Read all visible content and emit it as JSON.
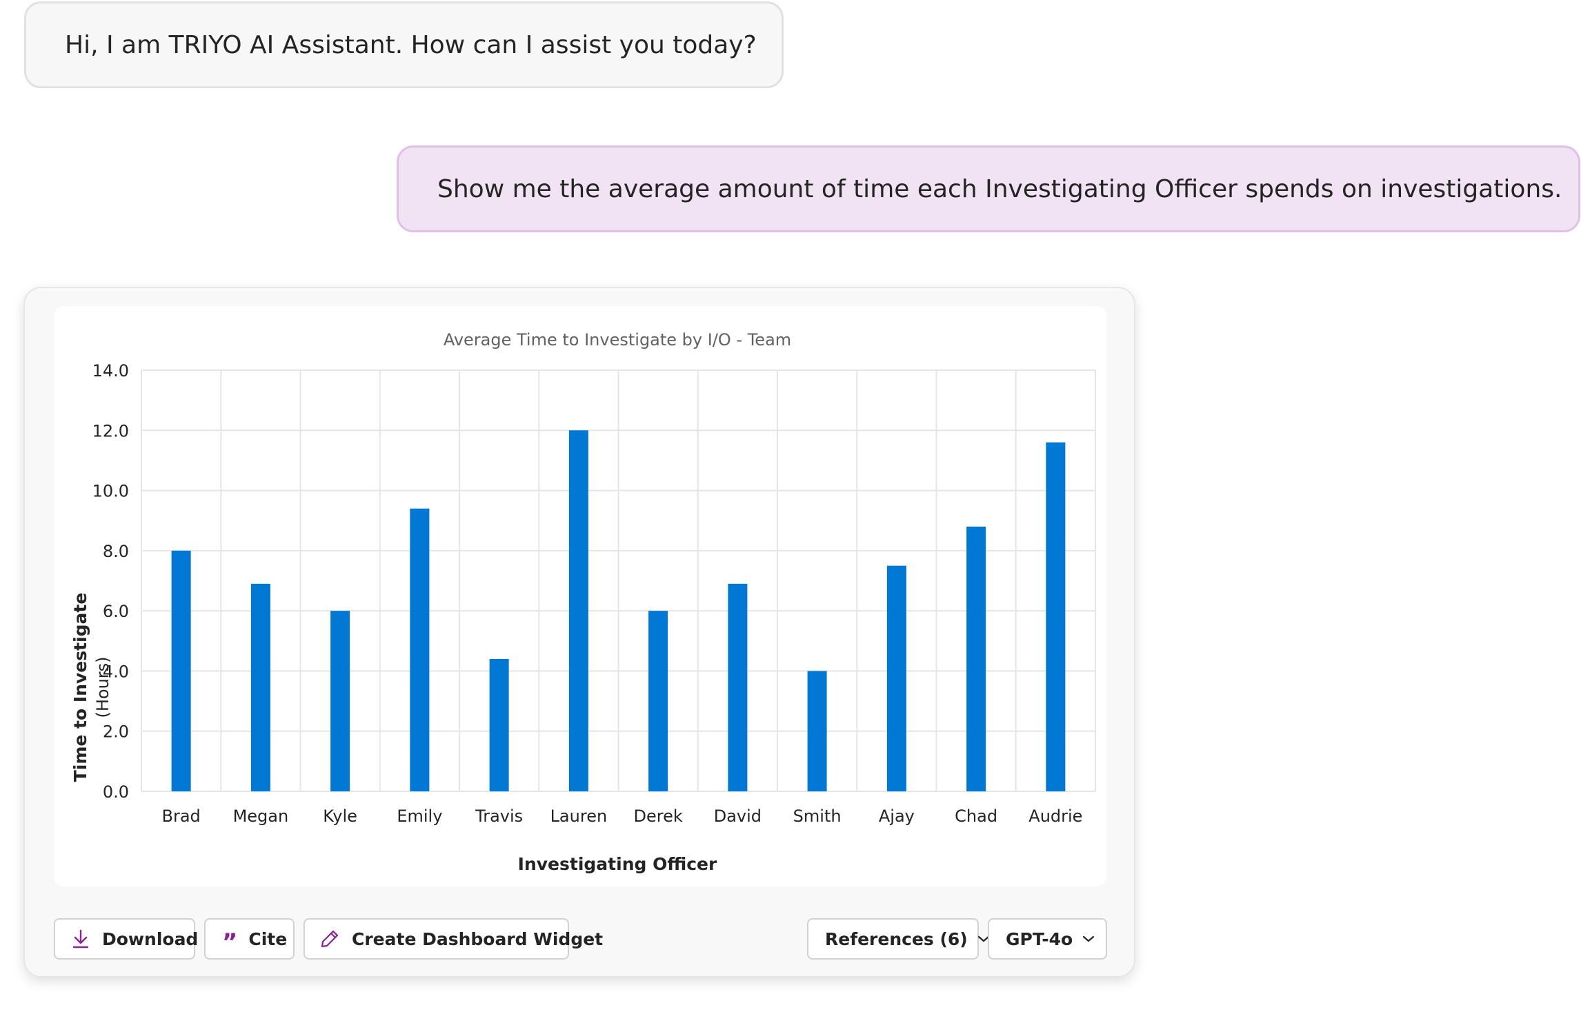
{
  "conversation": {
    "assistant_greeting": "Hi, I am TRIYO AI Assistant. How can I assist you today?",
    "user_message": "Show me the average amount of time each Investigating Officer spends on investigations."
  },
  "actions": {
    "download_label": "Download",
    "cite_label": "Cite",
    "create_widget_label": "Create Dashboard Widget",
    "references_label": "References (6)",
    "model_label": "GPT-4o"
  },
  "colors": {
    "bar": "#0078d4",
    "accent": "#8a1f9a",
    "user_bubble": "#f1e2f4"
  },
  "chart_data": {
    "type": "bar",
    "title": "Average Time to Investigate by I/O - Team",
    "xlabel": "Investigating Officer",
    "ylabel": "Time to Investigate",
    "ylabel_sub": "(Hours)",
    "ylim": [
      0,
      14
    ],
    "yticks": [
      "0.0",
      "2.0",
      "4.0",
      "6.0",
      "8.0",
      "10.0",
      "12.0",
      "14.0"
    ],
    "grid": true,
    "categories": [
      "Brad",
      "Megan",
      "Kyle",
      "Emily",
      "Travis",
      "Lauren",
      "Derek",
      "David",
      "Smith",
      "Ajay",
      "Chad",
      "Audrie"
    ],
    "values": [
      8.0,
      6.9,
      6.0,
      9.4,
      4.4,
      12.0,
      6.0,
      6.9,
      4.0,
      7.5,
      8.8,
      11.6
    ]
  }
}
